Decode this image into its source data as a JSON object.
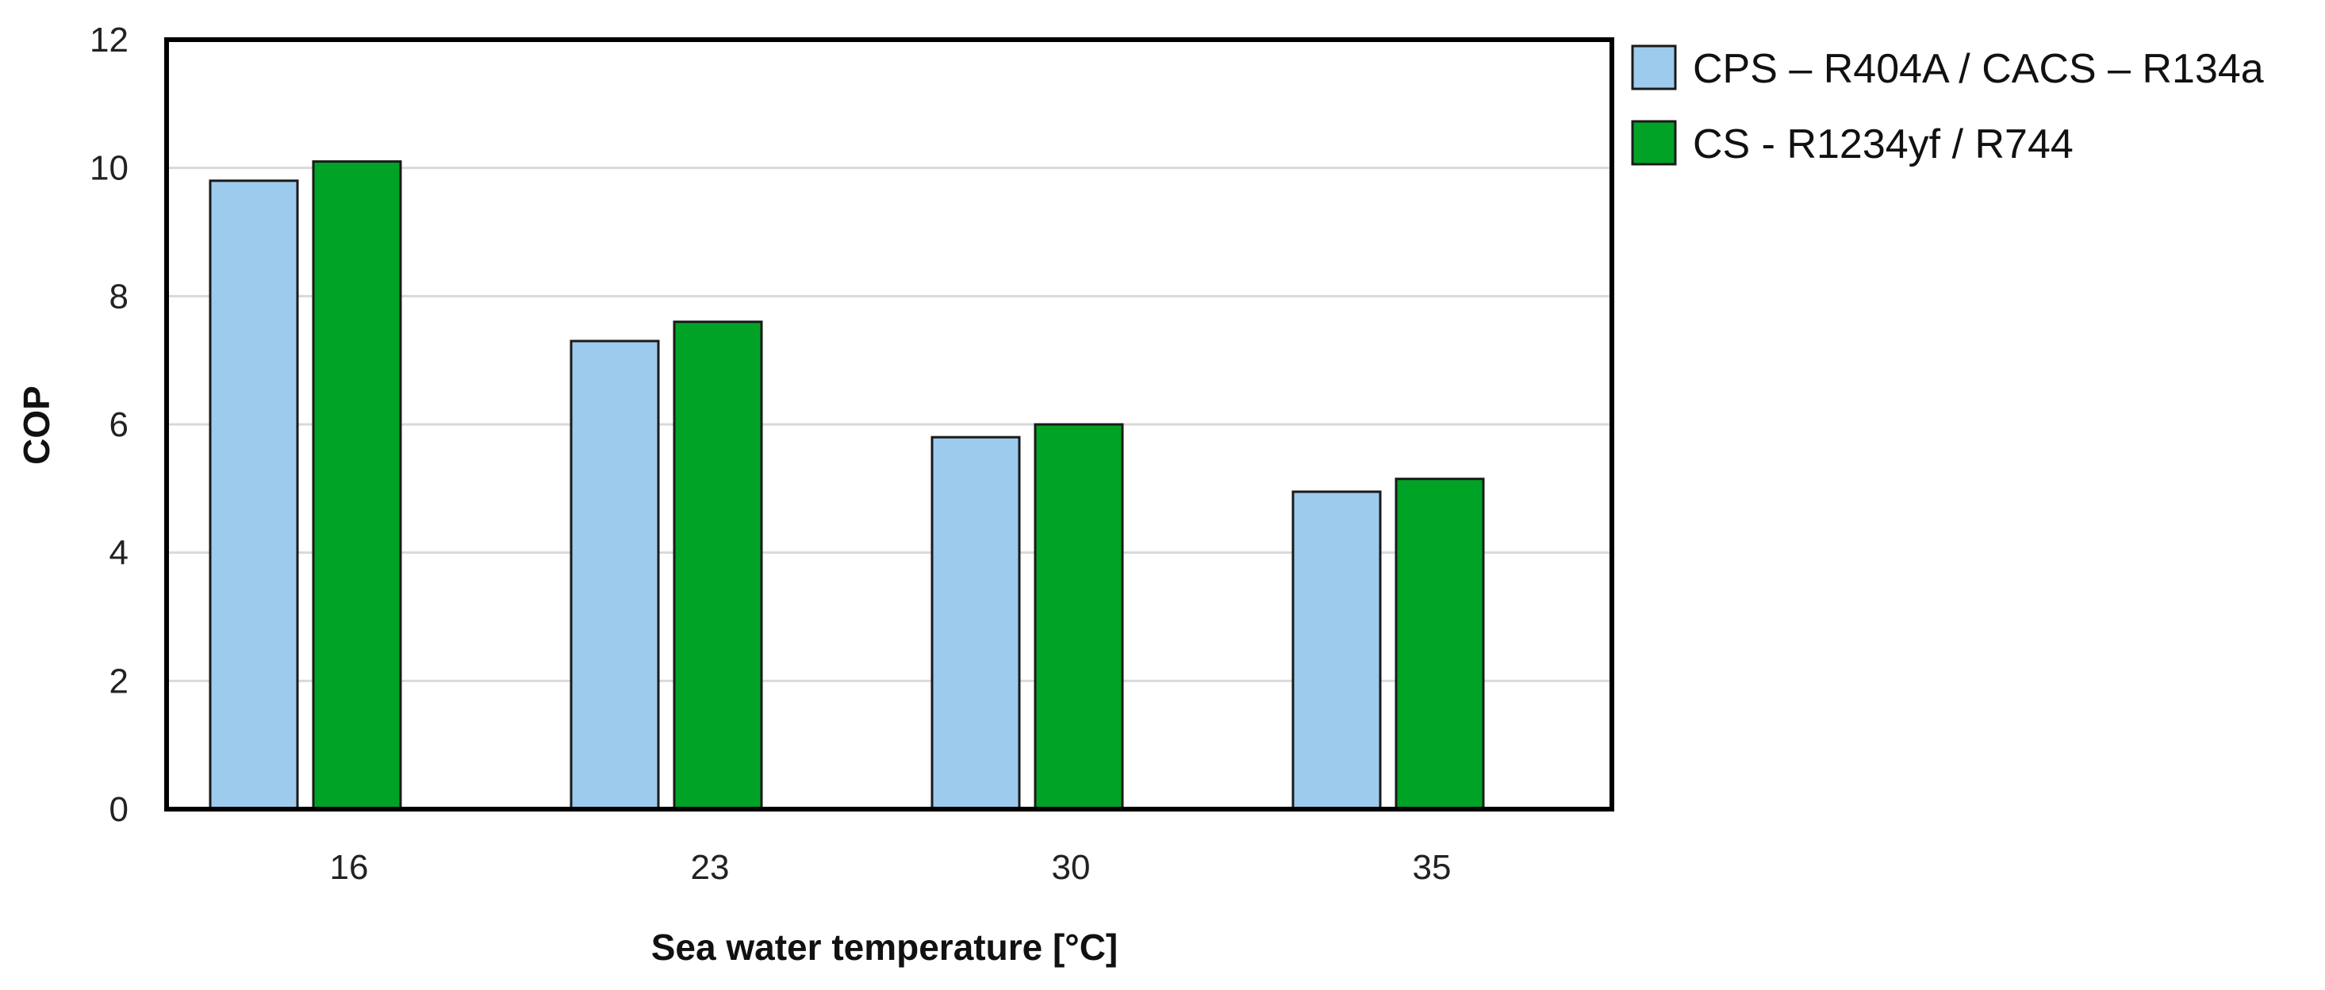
{
  "chart_data": {
    "type": "bar",
    "title": "",
    "xlabel": "Sea water temperature [°C]",
    "ylabel": "COP",
    "categories": [
      "16",
      "23",
      "30",
      "35"
    ],
    "ylim": [
      0,
      12
    ],
    "yticks": [
      0,
      2,
      4,
      6,
      8,
      10,
      12
    ],
    "grid": true,
    "legend_position": "top-right-outside",
    "series": [
      {
        "name": "CPS – R404A / CACS – R134a",
        "color": "#9DCBEE",
        "values": [
          9.8,
          7.3,
          5.8,
          4.95
        ]
      },
      {
        "name": "CS  - R1234yf / R744",
        "color": "#00A326",
        "values": [
          10.1,
          7.6,
          6.0,
          5.15
        ]
      }
    ]
  }
}
